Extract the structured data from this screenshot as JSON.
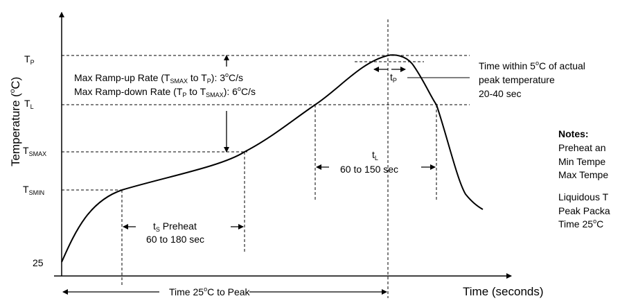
{
  "axes": {
    "ylabel_text": "Temperature (",
    "ylabel_sup": "o",
    "ylabel_end": "C)",
    "xlabel": "Time (seconds)",
    "y_marks": [
      {
        "main": "T",
        "sub": "P"
      },
      {
        "main": "T",
        "sub": "L"
      },
      {
        "main": "T",
        "sub": "SMAX"
      },
      {
        "main": "T",
        "sub": "SMIN"
      },
      {
        "main": "25",
        "sub": ""
      }
    ]
  },
  "ramp": {
    "up_a": "Max Ramp-up Rate (T",
    "up_sub1": "SMAX",
    "up_b": " to T",
    "up_sub2": "P",
    "up_c": "): 3",
    "up_sup": "o",
    "up_d": "C/s",
    "down_a": "Max Ramp-down Rate (T",
    "down_sub1": "P",
    "down_b": " to T",
    "down_sub2": "SMAX",
    "down_c": "): 6",
    "down_sup": "o",
    "down_d": "C/s"
  },
  "tp_label": {
    "main": "t",
    "sub": "P"
  },
  "peak_note": {
    "line1_a": "Time within 5",
    "line1_sup": "o",
    "line1_b": "C of actual",
    "line2": "peak temperature",
    "line3": "20-40 sec"
  },
  "tl_label": {
    "main": "t",
    "sub": "L",
    "range": "60 to 150 sec"
  },
  "ts_label": {
    "main": "t",
    "sub": "S",
    "rest": " Preheat",
    "range": "60 to 180 sec"
  },
  "time_to_peak": {
    "a": "Time 25",
    "sup": "o",
    "b": "C to Peak"
  },
  "notes": {
    "title": "Notes:",
    "line1": "Preheat an",
    "line2": "Min Tempe",
    "line3": "Max Tempe",
    "line4": "Liquidous T",
    "line5": "Peak Packa",
    "line6_a": "Time 25",
    "line6_sup": "o",
    "line6_b": "C"
  }
}
